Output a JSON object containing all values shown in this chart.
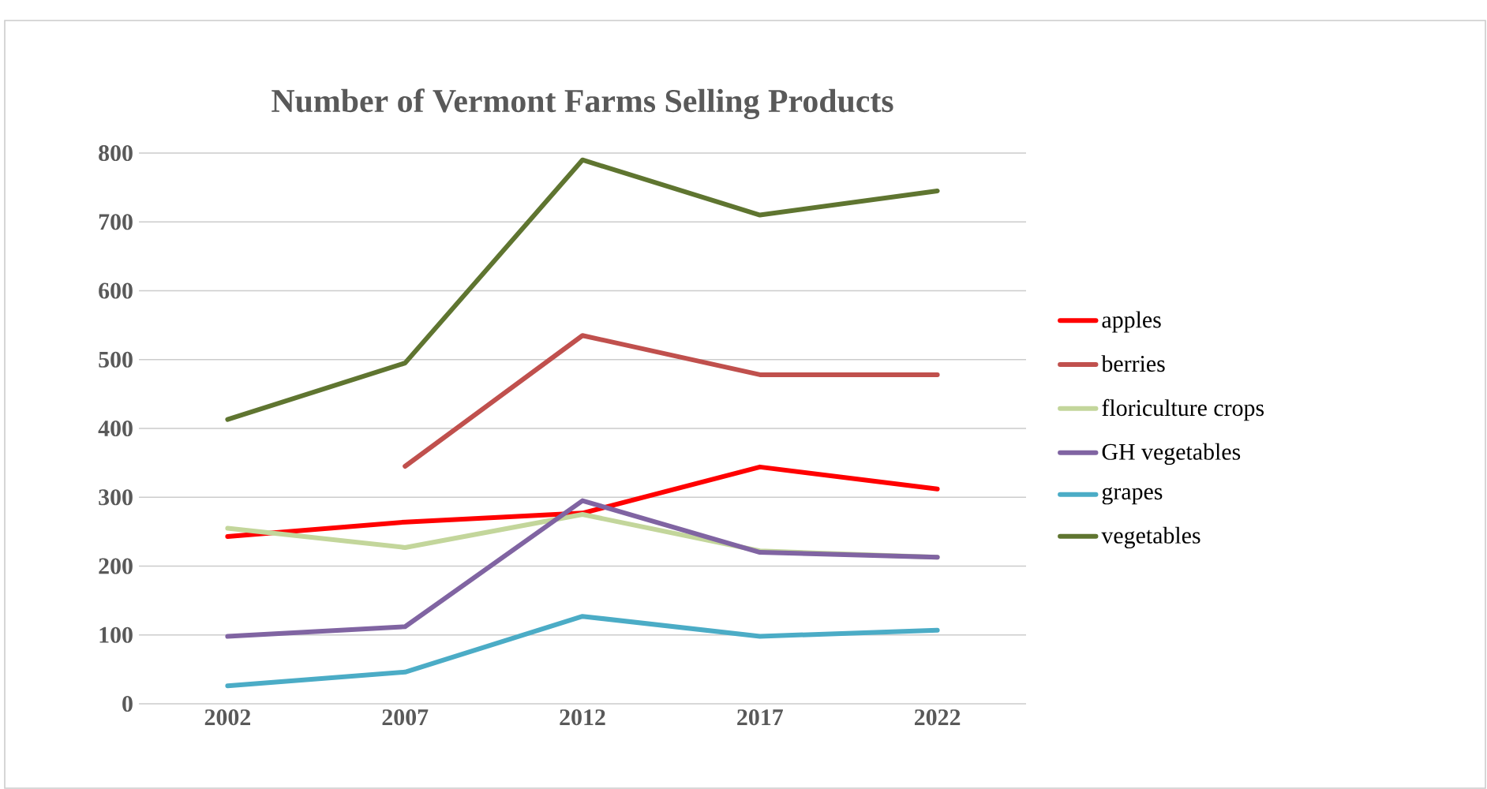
{
  "chart_data": {
    "type": "line",
    "title": "Number of Vermont Farms Selling Products",
    "categories": [
      "2002",
      "2007",
      "2012",
      "2017",
      "2022"
    ],
    "series": [
      {
        "name": "apples",
        "color": "#ff0000",
        "values": [
          243,
          264,
          277,
          344,
          312
        ]
      },
      {
        "name": "berries",
        "color": "#c0504d",
        "values": [
          null,
          345,
          535,
          478,
          478
        ]
      },
      {
        "name": "floriculture crops",
        "color": "#c3d69b",
        "values": [
          255,
          227,
          275,
          222,
          213
        ]
      },
      {
        "name": "GH vegetables",
        "color": "#8064a2",
        "values": [
          98,
          112,
          295,
          220,
          213
        ]
      },
      {
        "name": "grapes",
        "color": "#4bacc6",
        "values": [
          26,
          46,
          127,
          98,
          107
        ]
      },
      {
        "name": "vegetables",
        "color": "#5f7530",
        "values": [
          413,
          495,
          790,
          710,
          745
        ]
      }
    ],
    "ylim": [
      0,
      800
    ],
    "yticks": [
      0,
      100,
      200,
      300,
      400,
      500,
      600,
      700,
      800
    ],
    "grid": "y",
    "legend": "right",
    "marker": "none",
    "line_style": "solid"
  }
}
